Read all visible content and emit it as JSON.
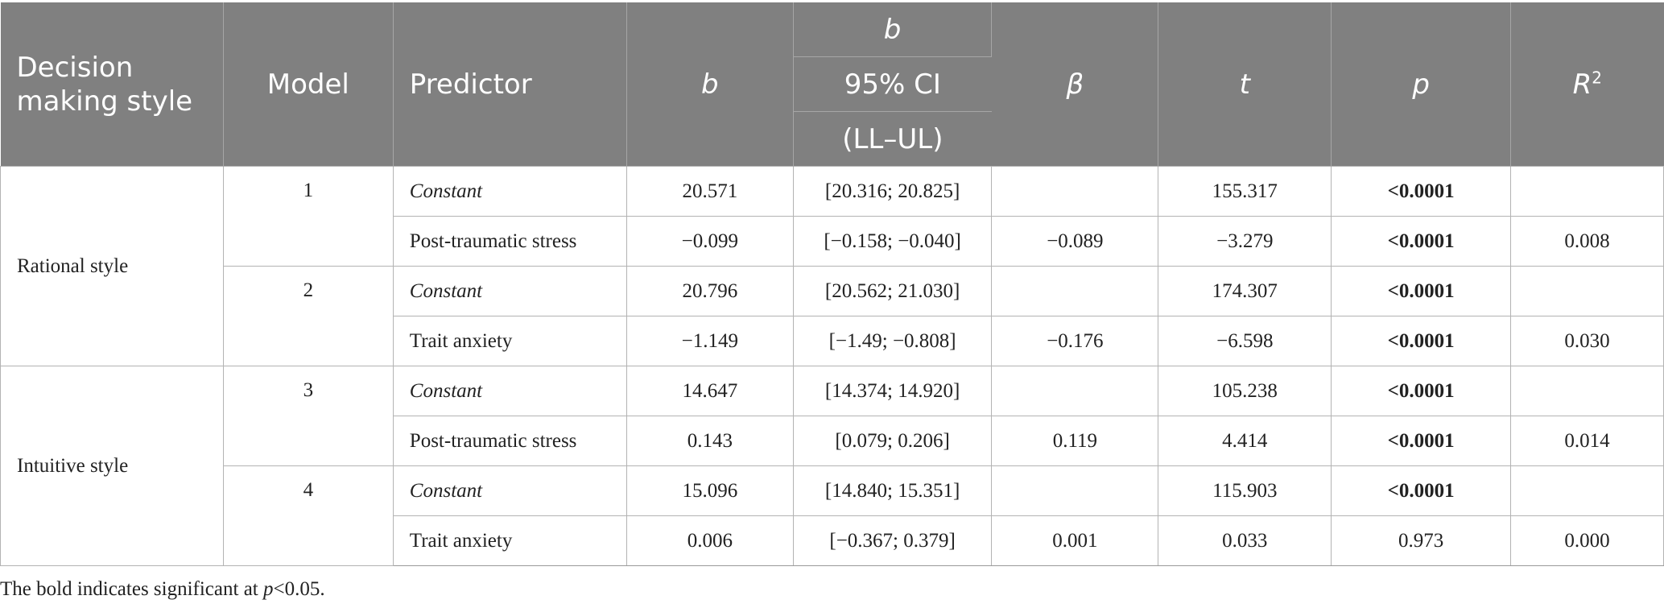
{
  "header": {
    "style": "Decision making style",
    "model": "Model",
    "predictor": "Predictor",
    "b": "b",
    "ci_top": "b",
    "ci_mid": "95% CI",
    "ci_bot": "(LL–UL)",
    "beta": "β",
    "t": "t",
    "p": "p",
    "r2_base": "R",
    "r2_sup": "2"
  },
  "groups": [
    {
      "style": "Rational style"
    },
    {
      "style": "Intuitive style"
    }
  ],
  "models": [
    "1",
    "2",
    "3",
    "4"
  ],
  "rows": [
    {
      "predictor": "Constant",
      "b": "20.571",
      "ci": "[20.316; 20.825]",
      "beta": "",
      "t": "155.317",
      "p": "<0.0001",
      "r2": ""
    },
    {
      "predictor": "Post-traumatic stress",
      "b": "−0.099",
      "ci": "[−0.158; −0.040]",
      "beta": "−0.089",
      "t": "−3.279",
      "p": "<0.0001",
      "r2": "0.008"
    },
    {
      "predictor": "Constant",
      "b": "20.796",
      "ci": "[20.562; 21.030]",
      "beta": "",
      "t": "174.307",
      "p": "<0.0001",
      "r2": ""
    },
    {
      "predictor": "Trait anxiety",
      "b": "−1.149",
      "ci": "[−1.49; −0.808]",
      "beta": "−0.176",
      "t": "−6.598",
      "p": "<0.0001",
      "r2": "0.030"
    },
    {
      "predictor": "Constant",
      "b": "14.647",
      "ci": "[14.374; 14.920]",
      "beta": "",
      "t": "105.238",
      "p": "<0.0001",
      "r2": ""
    },
    {
      "predictor": "Post-traumatic stress",
      "b": "0.143",
      "ci": "[0.079; 0.206]",
      "beta": "0.119",
      "t": "4.414",
      "p": "<0.0001",
      "r2": "0.014"
    },
    {
      "predictor": "Constant",
      "b": "15.096",
      "ci": "[14.840; 15.351]",
      "beta": "",
      "t": "115.903",
      "p": "<0.0001",
      "r2": ""
    },
    {
      "predictor": "Trait anxiety",
      "b": "0.006",
      "ci": "[−0.367; 0.379]",
      "beta": "0.001",
      "t": "0.033",
      "p": "0.973",
      "r2": "0.000"
    }
  ],
  "note": {
    "before": "The bold indicates significant at ",
    "italic": "p",
    "after": "<0.05."
  },
  "colors": {
    "header_bg": "#808080",
    "header_text": "#ffffff",
    "grid": "#b3b3b3"
  }
}
